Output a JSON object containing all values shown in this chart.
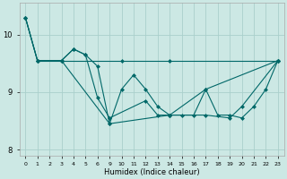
{
  "title": "",
  "xlabel": "Humidex (Indice chaleur)",
  "ylabel": "",
  "bg_color": "#cce8e4",
  "grid_color": "#aacfcc",
  "line_color": "#006868",
  "line_width": 0.8,
  "marker": "D",
  "marker_size": 2.0,
  "series": [
    {
      "xi": [
        0,
        1,
        3,
        4,
        5,
        6,
        9,
        10,
        11,
        12,
        13,
        14,
        15,
        16,
        17,
        18,
        19,
        20,
        21,
        22,
        23
      ],
      "y": [
        10.3,
        9.55,
        9.55,
        9.75,
        9.65,
        9.45,
        8.45,
        9.05,
        9.3,
        9.05,
        8.75,
        8.6,
        8.6,
        8.6,
        9.05,
        8.6,
        8.6,
        8.55,
        8.75,
        9.05,
        9.55
      ]
    },
    {
      "xi": [
        0,
        1,
        3,
        9,
        14,
        17,
        23
      ],
      "y": [
        10.3,
        9.55,
        9.55,
        8.45,
        8.6,
        9.05,
        9.55
      ]
    },
    {
      "xi": [
        0,
        1,
        3,
        4,
        5,
        6,
        9,
        12,
        13,
        14,
        17,
        19,
        20,
        23
      ],
      "y": [
        10.3,
        9.55,
        9.55,
        9.75,
        9.65,
        8.9,
        8.55,
        8.85,
        8.6,
        8.6,
        8.6,
        8.55,
        8.75,
        9.55
      ]
    },
    {
      "xi": [
        1,
        3,
        10,
        14,
        23
      ],
      "y": [
        9.55,
        9.55,
        9.55,
        9.55,
        9.55
      ]
    }
  ],
  "x_labels": [
    "0",
    "1",
    "2",
    "3",
    "4",
    "5",
    "6",
    "9",
    "10",
    "11",
    "12",
    "13",
    "14",
    "15",
    "16",
    "17",
    "18",
    "19",
    "20",
    "21",
    "22",
    "23"
  ],
  "x_vals": [
    0,
    1,
    2,
    3,
    4,
    5,
    6,
    7,
    8,
    9,
    10,
    11,
    12,
    13,
    14,
    15,
    16,
    17,
    18,
    19,
    20,
    21
  ],
  "x_index_map": [
    0,
    1,
    2,
    3,
    4,
    5,
    6,
    null,
    null,
    7,
    8,
    9,
    10,
    11,
    12,
    13,
    14,
    15,
    16,
    17,
    18,
    19,
    20,
    21
  ],
  "ylim": [
    7.9,
    10.55
  ],
  "yticks": [
    8,
    9,
    10
  ],
  "figsize": [
    3.2,
    2.0
  ],
  "dpi": 100
}
